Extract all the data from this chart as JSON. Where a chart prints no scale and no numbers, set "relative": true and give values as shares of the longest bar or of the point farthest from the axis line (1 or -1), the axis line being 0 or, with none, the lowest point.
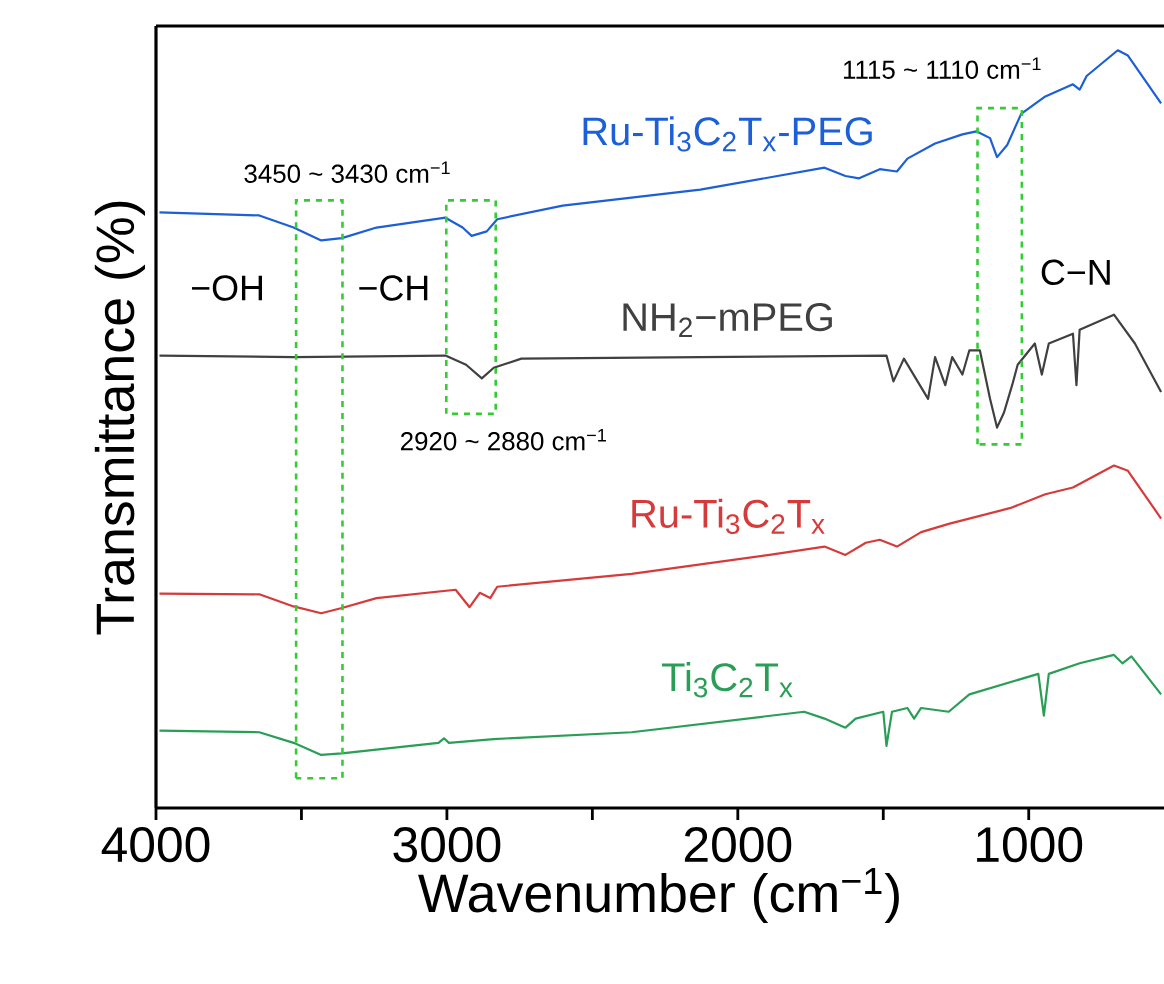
{
  "chart_data": {
    "type": "line",
    "relative": true,
    "xlabel": "Wavenumber (cm$^{−1}$)",
    "ylabel": "Transmittance (%)",
    "xlim": [
      4000,
      535
    ],
    "xticks": [
      4000,
      {
        "value": 3500,
        "label": null
      },
      3000,
      {
        "value": 2500,
        "label": null
      },
      2000,
      {
        "value": 1500,
        "label": null
      },
      1000
    ],
    "tick_labels": "x",
    "grid": false,
    "marker": "none",
    "line_style": "solid",
    "series": [
      {
        "name": "Ru-Ti$_{3}$C$_{2}$T$_{x}$-PEG",
        "color": "#1c5fd6",
        "x": [
          3988,
          3645,
          3527,
          3432,
          3361,
          3242,
          3005,
          2946,
          2915,
          2863,
          2827,
          2602,
          2129,
          1702,
          1630,
          1583,
          1512,
          1453,
          1417,
          1322,
          1228,
          1180,
          1133,
          1109,
          1074,
          1026,
          943,
          848,
          825,
          801,
          694,
          659,
          545
        ],
        "values": [
          0.786,
          0.782,
          0.766,
          0.749,
          0.752,
          0.766,
          0.779,
          0.766,
          0.755,
          0.761,
          0.777,
          0.795,
          0.816,
          0.845,
          0.834,
          0.831,
          0.843,
          0.84,
          0.857,
          0.877,
          0.889,
          0.893,
          0.884,
          0.859,
          0.875,
          0.916,
          0.939,
          0.955,
          0.948,
          0.966,
          1.0,
          0.993,
          0.93
        ]
      },
      {
        "name": "NH$_{2}$−mPEG",
        "color": "#404040",
        "x": [
          3988,
          3527,
          3005,
          2934,
          2880,
          2839,
          2744,
          2129,
          1489,
          1465,
          1429,
          1346,
          1322,
          1287,
          1263,
          1228,
          1204,
          1168,
          1133,
          1109,
          1085,
          1057,
          1038,
          979,
          955,
          931,
          848,
          836,
          825,
          707,
          635,
          545
        ],
        "values": [
          0.597,
          0.595,
          0.597,
          0.585,
          0.567,
          0.581,
          0.593,
          0.595,
          0.597,
          0.563,
          0.593,
          0.54,
          0.595,
          0.558,
          0.595,
          0.572,
          0.604,
          0.604,
          0.54,
          0.502,
          0.522,
          0.558,
          0.585,
          0.613,
          0.572,
          0.613,
          0.626,
          0.558,
          0.631,
          0.651,
          0.613,
          0.549
        ]
      },
      {
        "name": "Ru-Ti$_{3}$C$_{2}$T$_{x}$",
        "color": "#d63a3a",
        "x": [
          3988,
          3645,
          3527,
          3432,
          3361,
          3242,
          2970,
          2922,
          2887,
          2851,
          2827,
          2365,
          1891,
          1702,
          1630,
          1560,
          1512,
          1453,
          1370,
          1275,
          1062,
          943,
          848,
          707,
          659,
          545
        ],
        "values": [
          0.283,
          0.282,
          0.266,
          0.257,
          0.264,
          0.277,
          0.288,
          0.265,
          0.284,
          0.277,
          0.292,
          0.309,
          0.334,
          0.345,
          0.334,
          0.35,
          0.354,
          0.345,
          0.364,
          0.375,
          0.396,
          0.414,
          0.423,
          0.452,
          0.445,
          0.382
        ]
      },
      {
        "name": "Ti$_{3}$C$_{2}$T$_{x}$",
        "color": "#2a9d57",
        "x": [
          3988,
          3645,
          3527,
          3432,
          3361,
          3029,
          3010,
          2993,
          2839,
          2365,
          1772,
          1702,
          1630,
          1595,
          1500,
          1489,
          1470,
          1417,
          1394,
          1370,
          1275,
          1204,
          967,
          948,
          931,
          825,
          707,
          678,
          647,
          545
        ],
        "values": [
          0.102,
          0.1,
          0.086,
          0.07,
          0.072,
          0.086,
          0.092,
          0.086,
          0.091,
          0.1,
          0.127,
          0.118,
          0.106,
          0.118,
          0.127,
          0.082,
          0.127,
          0.132,
          0.118,
          0.132,
          0.127,
          0.15,
          0.177,
          0.122,
          0.177,
          0.191,
          0.202,
          0.191,
          0.2,
          0.15
        ]
      }
    ],
    "annotations": [
      "3450 ~ 3430 cm$^{−1}$",
      "2920 ~ 2880 cm$^{−1}$",
      "1115 ~ 1110 cm$^{−1}$",
      "−OH",
      "−CH",
      "C−N"
    ]
  }
}
